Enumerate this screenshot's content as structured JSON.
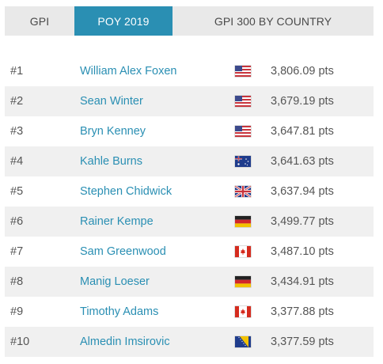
{
  "tabs": [
    {
      "label": "GPI",
      "active": false
    },
    {
      "label": "POY 2019",
      "active": true
    },
    {
      "label": "GPI 300 BY COUNTRY",
      "active": false
    }
  ],
  "colors": {
    "accent": "#2a8fb3",
    "tab_bg": "#e9e9e9",
    "row_alt": "#f0f0f0"
  },
  "rows": [
    {
      "rank": "#1",
      "name": "William Alex Foxen",
      "flag": "us-flag-icon",
      "points": "3,806.09 pts"
    },
    {
      "rank": "#2",
      "name": "Sean Winter",
      "flag": "us-flag-icon",
      "points": "3,679.19 pts"
    },
    {
      "rank": "#3",
      "name": "Bryn Kenney",
      "flag": "us-flag-icon",
      "points": "3,647.81 pts"
    },
    {
      "rank": "#4",
      "name": "Kahle Burns",
      "flag": "au-flag-icon",
      "points": "3,641.63 pts"
    },
    {
      "rank": "#5",
      "name": "Stephen Chidwick",
      "flag": "uk-flag-icon",
      "points": "3,637.94 pts"
    },
    {
      "rank": "#6",
      "name": "Rainer Kempe",
      "flag": "de-flag-icon",
      "points": "3,499.77 pts"
    },
    {
      "rank": "#7",
      "name": "Sam Greenwood",
      "flag": "ca-flag-icon",
      "points": "3,487.10 pts"
    },
    {
      "rank": "#8",
      "name": "Manig Loeser",
      "flag": "de-flag-icon",
      "points": "3,434.91 pts"
    },
    {
      "rank": "#9",
      "name": "Timothy Adams",
      "flag": "ca-flag-icon",
      "points": "3,377.88 pts"
    },
    {
      "rank": "#10",
      "name": "Almedin Imsirovic",
      "flag": "ba-flag-icon",
      "points": "3,377.59 pts"
    }
  ]
}
